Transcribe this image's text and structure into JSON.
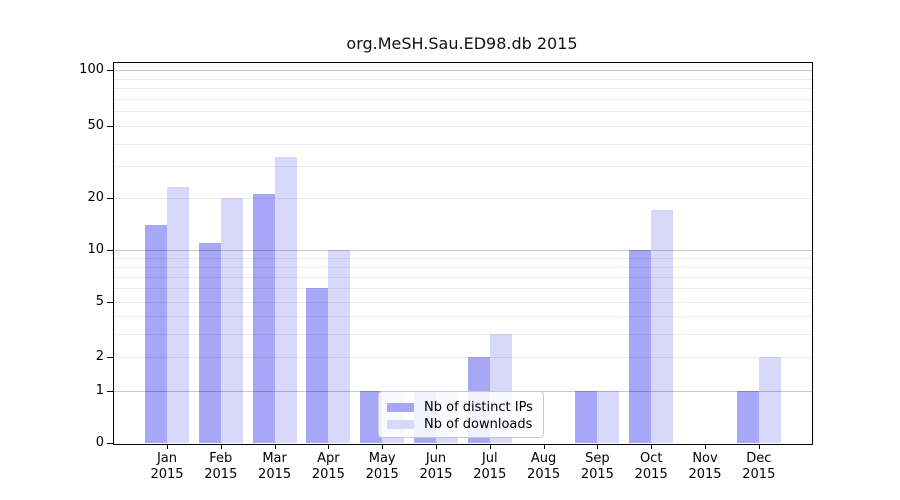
{
  "chart_data": {
    "type": "bar",
    "title": "org.MeSH.Sau.ED98.db 2015",
    "categories": [
      "Jan",
      "Feb",
      "Mar",
      "Apr",
      "May",
      "Jun",
      "Jul",
      "Aug",
      "Sep",
      "Oct",
      "Nov",
      "Dec"
    ],
    "x_year_label": "2015",
    "series": [
      {
        "name": "Nb of distinct IPs",
        "color": "#a7a7f7",
        "values": [
          14,
          11,
          21,
          6,
          1,
          1,
          2,
          0,
          1,
          10,
          0,
          1
        ]
      },
      {
        "name": "Nb of downloads",
        "color": "#d8d8fa",
        "values": [
          23,
          20,
          34,
          10,
          1,
          1,
          3,
          0,
          1,
          17,
          0,
          2
        ]
      }
    ],
    "y_axis": {
      "scale": "log1p",
      "tick_values": [
        0,
        1,
        2,
        5,
        10,
        20,
        50,
        100
      ],
      "tick_labels": [
        "0",
        "1",
        "2",
        "5",
        "10",
        "20",
        "50",
        "100"
      ],
      "grid_minor": [
        2,
        3,
        4,
        5,
        6,
        7,
        8,
        9,
        20,
        30,
        40,
        50,
        60,
        70,
        80,
        90
      ],
      "grid_major": [
        1,
        10,
        100
      ],
      "range_top": 120
    },
    "legend": {
      "position": "bottom-center"
    },
    "grid": "on",
    "colors": {
      "bar_dark": "#a7a7f7",
      "bar_light": "#d8d8fa",
      "grid_minor": "#ececec",
      "grid_major": "#c9c9c9",
      "axis": "#000000"
    }
  }
}
